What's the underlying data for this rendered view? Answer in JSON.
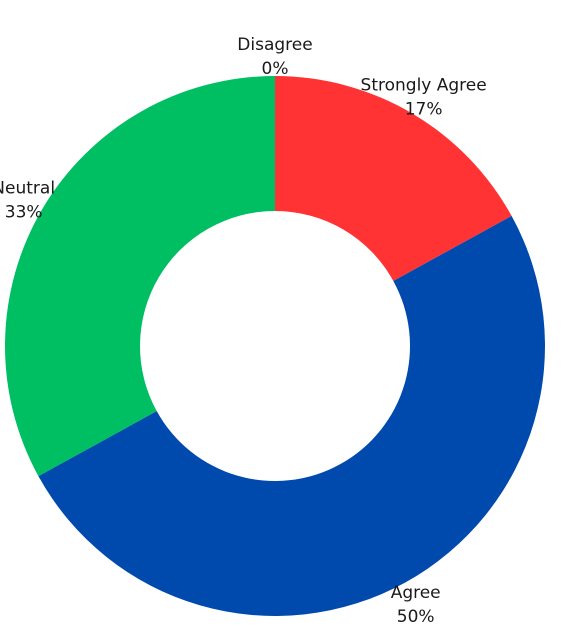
{
  "chart_data": {
    "type": "pie",
    "variant": "donut",
    "title": "",
    "categories": [
      "Strongly Agree",
      "Agree",
      "Neutral",
      "Disagree"
    ],
    "values": [
      17,
      50,
      33,
      0
    ],
    "value_labels": [
      "17%",
      "50%",
      "33%",
      "0%"
    ],
    "colors": [
      "#ff3333",
      "#004aad",
      "#00bf63",
      "#999999"
    ],
    "start_angle": "12 o'clock",
    "direction": "clockwise",
    "legend": "none",
    "grid": false
  }
}
